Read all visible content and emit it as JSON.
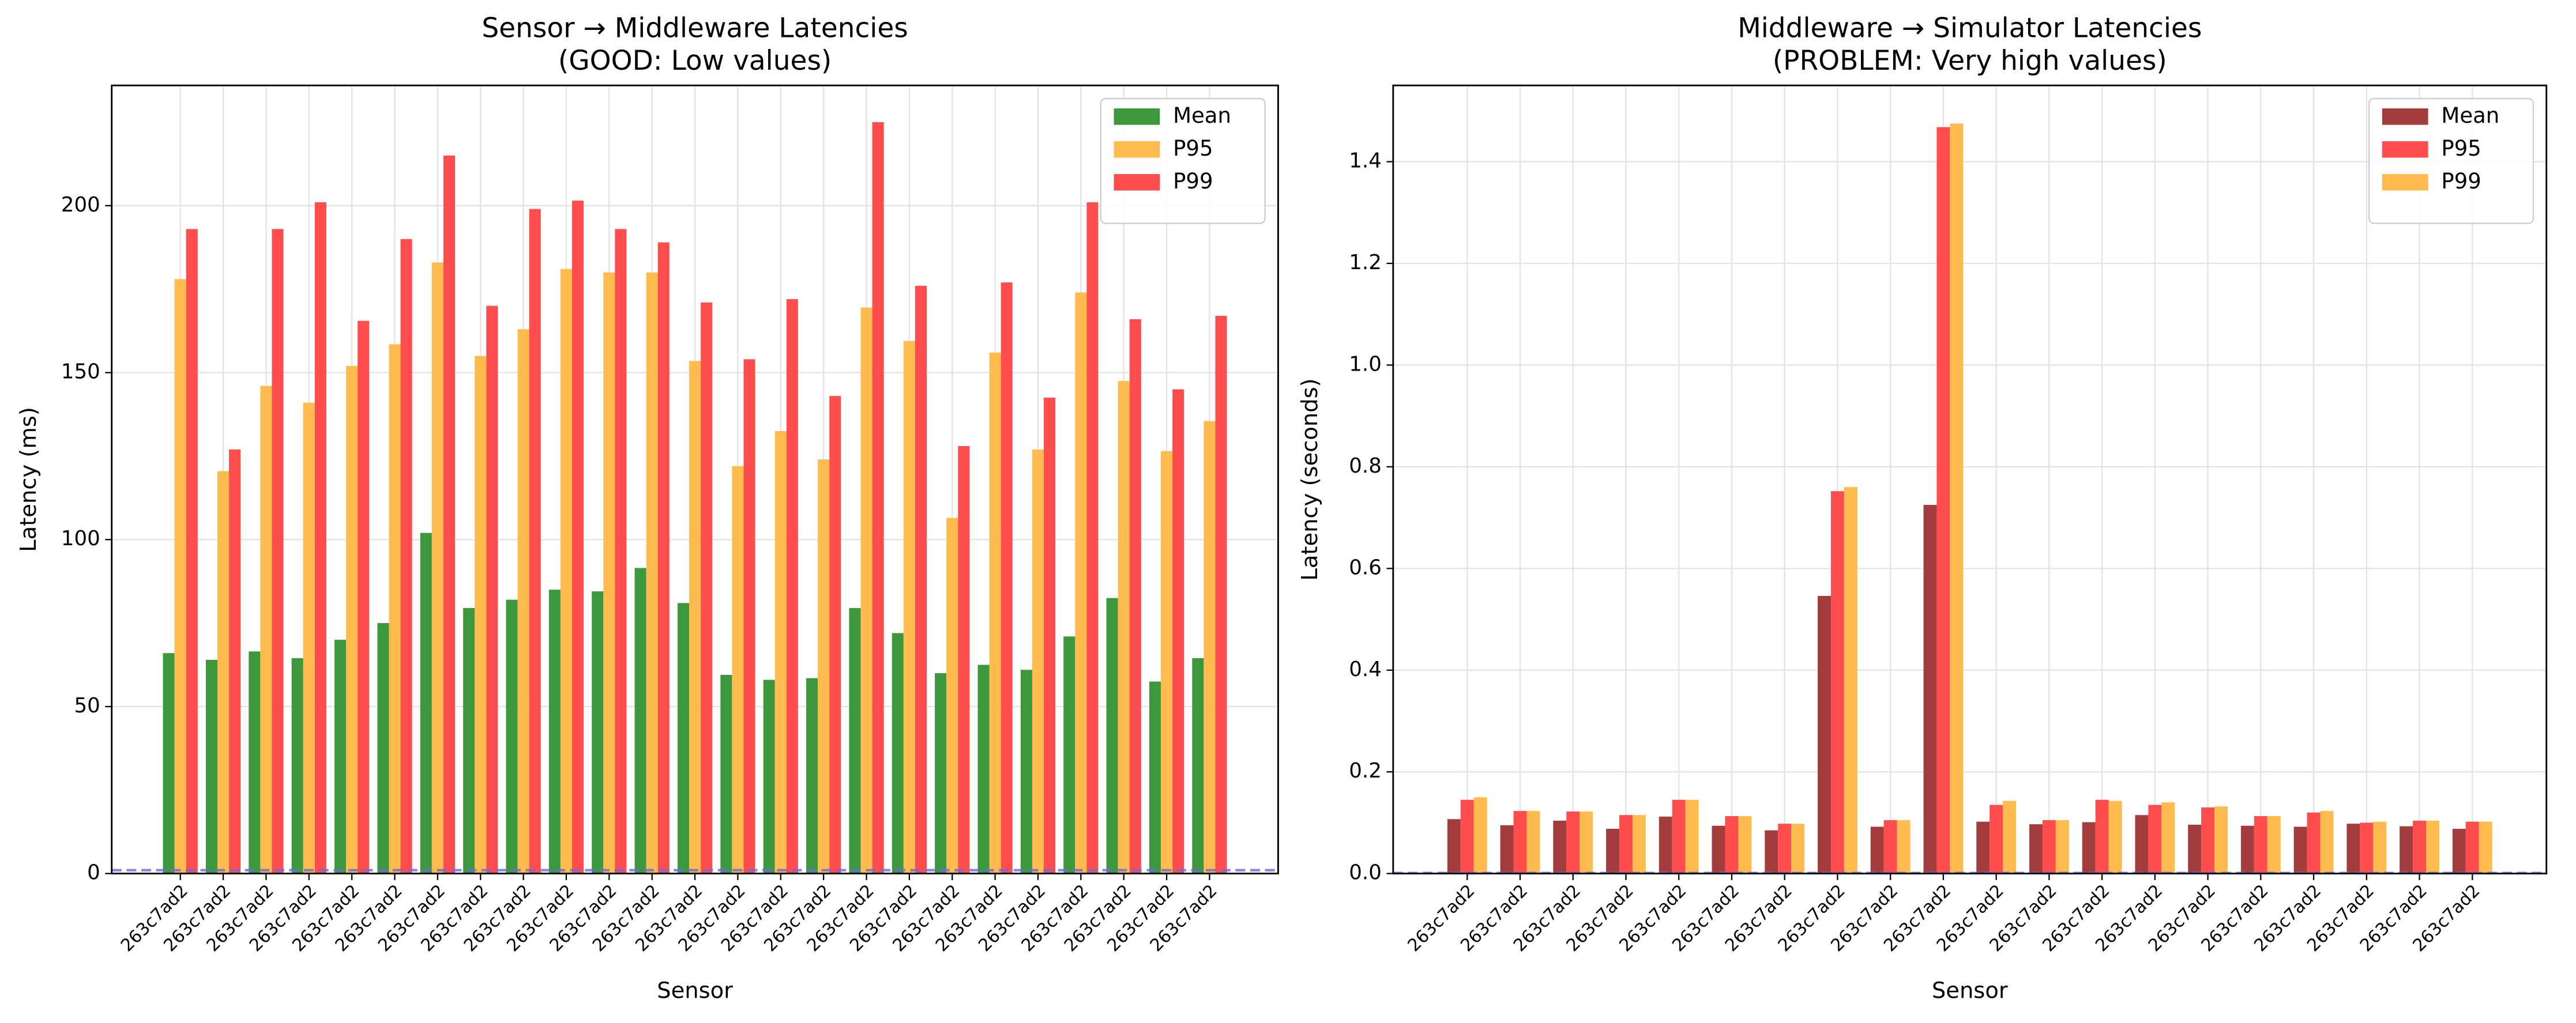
{
  "chart_data": [
    {
      "type": "bar",
      "title": "Sensor → Middleware Latencies\n(GOOD: Low values)",
      "x_label": "Sensor",
      "y_label": "Latency (ms)",
      "categories": [
        "263c7ad2",
        "263c7ad2",
        "263c7ad2",
        "263c7ad2",
        "263c7ad2",
        "263c7ad2",
        "263c7ad2",
        "263c7ad2",
        "263c7ad2",
        "263c7ad2",
        "263c7ad2",
        "263c7ad2",
        "263c7ad2",
        "263c7ad2",
        "263c7ad2",
        "263c7ad2",
        "263c7ad2",
        "263c7ad2",
        "263c7ad2",
        "263c7ad2",
        "263c7ad2",
        "263c7ad2",
        "263c7ad2",
        "263c7ad2",
        "263c7ad2"
      ],
      "series": [
        {
          "name": "Mean",
          "color": "#3d983d",
          "values": [
            66,
            64,
            66.5,
            64.5,
            70,
            75,
            102,
            79.5,
            82,
            85,
            84.5,
            91.5,
            81,
            59.5,
            58,
            58.5,
            79.5,
            72,
            60,
            62.5,
            61,
            71,
            82.5,
            57.5,
            64.5
          ]
        },
        {
          "name": "P95",
          "color": "#ffbb4d",
          "values": [
            178,
            120.5,
            146,
            141,
            152,
            158.5,
            183,
            155,
            163,
            181,
            180,
            180,
            153.5,
            122,
            132.5,
            124,
            169.5,
            159.5,
            106.5,
            156,
            127,
            174,
            147.5,
            126.5,
            135.5
          ]
        },
        {
          "name": "P99",
          "color": "#ff4d4d",
          "values": [
            193,
            127,
            193,
            201,
            165.5,
            190,
            215,
            170,
            199,
            201.5,
            193,
            189,
            171,
            154,
            172,
            143,
            225,
            176,
            128,
            177,
            142.5,
            201,
            166,
            145,
            167
          ]
        }
      ],
      "ylim": [
        0,
        236
      ],
      "yticks": [
        0,
        50,
        100,
        150,
        200
      ],
      "grid": true,
      "legend": "upper right",
      "reference_line": 1
    },
    {
      "type": "bar",
      "title": "Middleware → Simulator Latencies\n(PROBLEM: Very high values)",
      "x_label": "Sensor",
      "y_label": "Latency (seconds)",
      "categories": [
        "263c7ad2",
        "263c7ad2",
        "263c7ad2",
        "263c7ad2",
        "263c7ad2",
        "263c7ad2",
        "263c7ad2",
        "263c7ad2",
        "263c7ad2",
        "263c7ad2",
        "263c7ad2",
        "263c7ad2",
        "263c7ad2",
        "263c7ad2",
        "263c7ad2",
        "263c7ad2",
        "263c7ad2",
        "263c7ad2",
        "263c7ad2",
        "263c7ad2"
      ],
      "series": [
        {
          "name": "Mean",
          "color": "#a33d3d",
          "values": [
            0.107,
            0.095,
            0.104,
            0.088,
            0.112,
            0.094,
            0.085,
            0.546,
            0.092,
            0.725,
            0.102,
            0.097,
            0.101,
            0.115,
            0.096,
            0.094,
            0.092,
            0.098,
            0.093,
            0.088
          ]
        },
        {
          "name": "P95",
          "color": "#ff4d4d",
          "values": [
            0.145,
            0.123,
            0.122,
            0.115,
            0.145,
            0.113,
            0.098,
            0.752,
            0.105,
            1.468,
            0.135,
            0.105,
            0.145,
            0.135,
            0.13,
            0.113,
            0.12,
            0.1,
            0.104,
            0.102
          ]
        },
        {
          "name": "P99",
          "color": "#ffbb4d",
          "values": [
            0.15,
            0.123,
            0.122,
            0.115,
            0.145,
            0.113,
            0.098,
            0.76,
            0.105,
            1.475,
            0.143,
            0.105,
            0.143,
            0.14,
            0.132,
            0.113,
            0.123,
            0.102,
            0.104,
            0.102
          ]
        }
      ],
      "ylim": [
        0,
        1.55
      ],
      "yticks": [
        {
          "value": 0,
          "label": "0.0"
        },
        {
          "value": 0.2,
          "label": "0.2"
        },
        {
          "value": 0.4,
          "label": "0.4"
        },
        {
          "value": 0.6,
          "label": "0.6"
        },
        {
          "value": 0.8,
          "label": "0.8"
        },
        {
          "value": 1.0,
          "label": "1.0"
        },
        {
          "value": 1.2,
          "label": "1.2"
        },
        {
          "value": 1.4,
          "label": "1.4"
        }
      ],
      "grid": true,
      "legend": "upper right",
      "reference_line": 0.001
    }
  ]
}
